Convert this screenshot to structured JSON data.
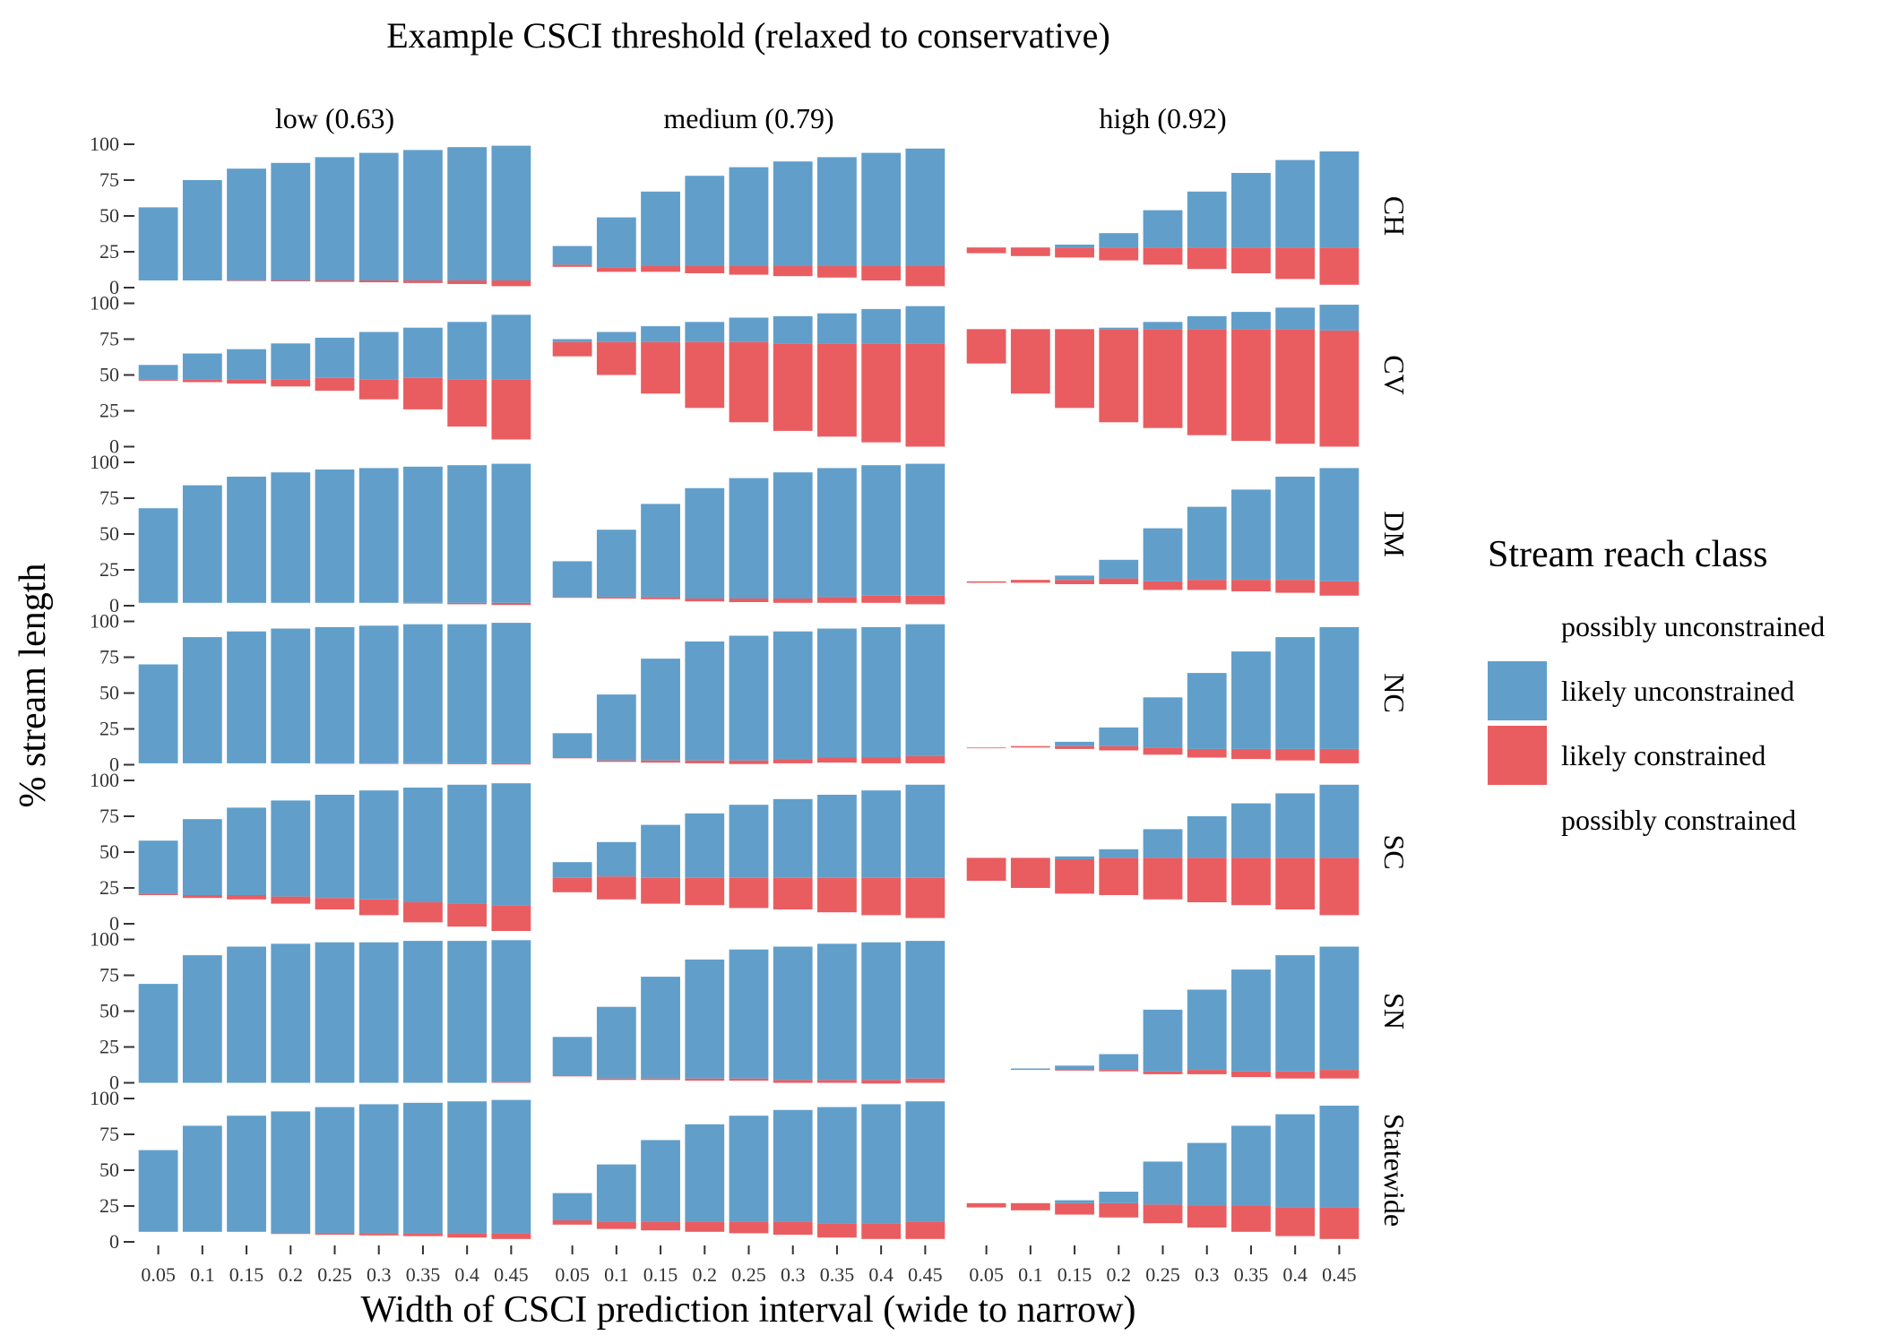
{
  "chart_data": {
    "type": "bar",
    "title": "Example CSCI threshold (relaxed to conservative)",
    "xlabel": "Width of CSCI prediction interval (wide to narrow)",
    "ylabel": "% stream length",
    "ylim": [
      0,
      100
    ],
    "yticks": [
      0,
      25,
      50,
      75,
      100
    ],
    "categories": [
      "0.05",
      "0.1",
      "0.15",
      "0.2",
      "0.25",
      "0.3",
      "0.35",
      "0.4",
      "0.45"
    ],
    "columns": [
      "low (0.63)",
      "medium (0.79)",
      "high (0.92)"
    ],
    "rows": [
      "CH",
      "CV",
      "DM",
      "NC",
      "SC",
      "SN",
      "Statewide"
    ],
    "legend": {
      "title": "Stream reach class",
      "placement": "right",
      "entries": [
        {
          "label": "possibly unconstrained",
          "color": "#ffffff"
        },
        {
          "label": "likely unconstrained",
          "color": "#619fca"
        },
        {
          "label": "likely constrained",
          "color": "#e95d61"
        },
        {
          "label": "possibly constrained",
          "color": "#ffffff"
        }
      ]
    },
    "colors": {
      "likely_unconstrained": "#619fca",
      "likely_constrained": "#e95d61",
      "possibly": "#ffffff"
    },
    "series_order_top_to_bottom": [
      "possibly unconstrained",
      "likely unconstrained",
      "likely constrained",
      "possibly constrained"
    ],
    "panels": [
      {
        "row": "CH",
        "column": "low (0.63)",
        "likely_unconstrained": [
          51,
          70,
          78,
          82,
          86,
          89,
          91,
          93,
          94
        ],
        "likely_constrained": [
          0,
          0,
          0.4,
          0.6,
          1,
          1.3,
          1.8,
          2.5,
          4
        ],
        "possibly_unconstrained": [
          44,
          25,
          17,
          13,
          9,
          6,
          4,
          2,
          1
        ]
      },
      {
        "row": "CH",
        "column": "medium (0.79)",
        "likely_unconstrained": [
          13,
          35,
          52,
          63,
          69,
          73,
          76,
          79,
          82
        ],
        "likely_constrained": [
          1.5,
          3,
          4,
          5,
          6,
          7,
          8,
          10,
          14
        ],
        "possibly_unconstrained": [
          71,
          51,
          33,
          22,
          16,
          12,
          9,
          6,
          3
        ]
      },
      {
        "row": "CH",
        "column": "high (0.92)",
        "likely_unconstrained": [
          0,
          0,
          2,
          10,
          26,
          39,
          52,
          61,
          67
        ],
        "likely_constrained": [
          4,
          6,
          7,
          9,
          12,
          15,
          18,
          22,
          26
        ],
        "possibly_unconstrained": [
          72,
          72,
          70,
          62,
          46,
          33,
          20,
          11,
          5
        ]
      },
      {
        "row": "CV",
        "column": "low (0.63)",
        "likely_unconstrained": [
          10,
          18,
          21,
          25,
          28,
          33,
          35,
          40,
          45
        ],
        "likely_constrained": [
          1,
          2,
          3,
          5,
          9,
          14,
          22,
          33,
          42
        ],
        "possibly_unconstrained": [
          43,
          35,
          32,
          28,
          24,
          20,
          17,
          13,
          8
        ]
      },
      {
        "row": "CV",
        "column": "medium (0.79)",
        "likely_unconstrained": [
          2,
          7,
          11,
          14,
          17,
          19,
          21,
          24,
          26
        ],
        "likely_constrained": [
          10,
          23,
          36,
          46,
          56,
          61,
          65,
          69,
          72
        ],
        "possibly_unconstrained": [
          25,
          20,
          16,
          13,
          10,
          9,
          7,
          4,
          2
        ]
      },
      {
        "row": "CV",
        "column": "high (0.92)",
        "likely_unconstrained": [
          0,
          0,
          0,
          1,
          5,
          9,
          12,
          15,
          18
        ],
        "likely_constrained": [
          24,
          45,
          55,
          65,
          69,
          74,
          78,
          80,
          81
        ],
        "possibly_unconstrained": [
          18,
          18,
          18,
          17,
          13,
          9,
          6,
          3,
          1
        ]
      },
      {
        "row": "DM",
        "column": "low (0.63)",
        "likely_unconstrained": [
          66,
          82,
          88,
          91,
          93,
          94,
          95,
          96,
          97
        ],
        "likely_constrained": [
          0,
          0,
          0,
          0,
          0,
          0,
          0.5,
          1,
          1.5
        ],
        "possibly_unconstrained": [
          32,
          16,
          10,
          7,
          5,
          4,
          3,
          2,
          1
        ]
      },
      {
        "row": "DM",
        "column": "medium (0.79)",
        "likely_unconstrained": [
          25,
          47,
          65,
          77,
          84,
          88,
          90,
          91,
          92
        ],
        "likely_constrained": [
          0.5,
          1,
          1.5,
          2,
          2.5,
          3,
          4,
          5,
          6
        ],
        "possibly_unconstrained": [
          69,
          47,
          29,
          18,
          11,
          7,
          4,
          2,
          1
        ]
      },
      {
        "row": "DM",
        "column": "high (0.92)",
        "likely_unconstrained": [
          0,
          0,
          3,
          13,
          37,
          51,
          63,
          72,
          79
        ],
        "likely_constrained": [
          1,
          2,
          3,
          4,
          6,
          7,
          8,
          9,
          10
        ],
        "possibly_unconstrained": [
          83,
          82,
          79,
          68,
          46,
          31,
          19,
          10,
          4
        ]
      },
      {
        "row": "NC",
        "column": "low (0.63)",
        "likely_unconstrained": [
          69,
          88,
          92,
          94,
          95,
          96,
          97,
          97,
          98
        ],
        "likely_constrained": [
          0,
          0,
          0,
          0,
          0.3,
          0.4,
          0.5,
          0.6,
          0.8
        ],
        "possibly_unconstrained": [
          30,
          11,
          7,
          5,
          4,
          3,
          2,
          2,
          1
        ]
      },
      {
        "row": "NC",
        "column": "medium (0.79)",
        "likely_unconstrained": [
          17,
          46,
          71,
          83,
          87,
          89,
          90,
          91,
          92
        ],
        "likely_constrained": [
          0.5,
          1,
          1.5,
          2,
          2.5,
          3,
          3.5,
          4,
          5
        ],
        "possibly_unconstrained": [
          78,
          51,
          26,
          14,
          10,
          7,
          5,
          4,
          2
        ]
      },
      {
        "row": "NC",
        "column": "high (0.92)",
        "likely_unconstrained": [
          0,
          0,
          3,
          13,
          35,
          53,
          68,
          78,
          85
        ],
        "likely_constrained": [
          0.5,
          1,
          2,
          3,
          5,
          6,
          7,
          8,
          10
        ],
        "possibly_unconstrained": [
          88,
          87,
          84,
          74,
          53,
          36,
          21,
          11,
          4
        ]
      },
      {
        "row": "SC",
        "column": "low (0.63)",
        "likely_unconstrained": [
          37,
          53,
          61,
          67,
          72,
          76,
          80,
          83,
          85
        ],
        "likely_constrained": [
          1,
          2,
          3,
          5,
          8,
          11,
          14,
          16,
          18
        ],
        "possibly_unconstrained": [
          42,
          27,
          19,
          14,
          10,
          7,
          5,
          3,
          2
        ]
      },
      {
        "row": "SC",
        "column": "medium (0.79)",
        "likely_unconstrained": [
          11,
          24,
          37,
          45,
          51,
          55,
          58,
          61,
          65
        ],
        "likely_constrained": [
          10,
          16,
          18,
          19,
          21,
          22,
          24,
          26,
          28
        ],
        "possibly_unconstrained": [
          57,
          43,
          31,
          23,
          17,
          13,
          10,
          7,
          3
        ]
      },
      {
        "row": "SC",
        "column": "high (0.92)",
        "likely_unconstrained": [
          0,
          0,
          2,
          6,
          20,
          29,
          38,
          45,
          51
        ],
        "likely_constrained": [
          16,
          21,
          24,
          26,
          29,
          31,
          33,
          36,
          40
        ],
        "possibly_unconstrained": [
          54,
          54,
          53,
          48,
          34,
          25,
          16,
          9,
          3
        ]
      },
      {
        "row": "SN",
        "column": "low (0.63)",
        "likely_unconstrained": [
          69,
          89,
          95,
          97,
          98,
          98,
          99,
          99,
          99
        ],
        "likely_constrained": [
          0,
          0,
          0,
          0,
          0,
          0,
          0,
          0,
          0.5
        ],
        "possibly_unconstrained": [
          31,
          11,
          5,
          3,
          2,
          2,
          1,
          1,
          0.5
        ]
      },
      {
        "row": "SN",
        "column": "medium (0.79)",
        "likely_unconstrained": [
          27,
          50,
          71,
          83,
          90,
          93,
          95,
          96,
          96
        ],
        "likely_constrained": [
          0.5,
          1,
          1,
          1.5,
          1.5,
          2,
          2,
          2.5,
          3
        ],
        "possibly_unconstrained": [
          68,
          47,
          26,
          14,
          7,
          5,
          3,
          2,
          1
        ]
      },
      {
        "row": "SN",
        "column": "high (0.92)",
        "likely_unconstrained": [
          0,
          1,
          3,
          11,
          43,
          56,
          71,
          81,
          86
        ],
        "likely_constrained": [
          0,
          0,
          0.5,
          1,
          2,
          3,
          4,
          5,
          6
        ],
        "possibly_unconstrained": [
          91,
          90,
          88,
          80,
          49,
          35,
          21,
          11,
          5
        ]
      },
      {
        "row": "Statewide",
        "column": "low (0.63)",
        "likely_unconstrained": [
          57,
          74,
          81,
          85,
          88,
          90,
          91,
          92,
          93
        ],
        "likely_constrained": [
          0,
          0,
          0,
          0.5,
          1,
          1.5,
          2,
          3,
          4
        ],
        "possibly_unconstrained": [
          36,
          19,
          12,
          9,
          6,
          4,
          3,
          2,
          1
        ]
      },
      {
        "row": "Statewide",
        "column": "medium (0.79)",
        "likely_unconstrained": [
          19,
          40,
          57,
          68,
          74,
          78,
          81,
          83,
          84
        ],
        "likely_constrained": [
          3,
          5,
          6,
          7,
          8,
          9,
          10,
          11,
          12
        ],
        "possibly_unconstrained": [
          66,
          46,
          29,
          18,
          12,
          8,
          6,
          4,
          2
        ]
      },
      {
        "row": "Statewide",
        "column": "high (0.92)",
        "likely_unconstrained": [
          0,
          0,
          2,
          8,
          30,
          44,
          56,
          65,
          71
        ],
        "likely_constrained": [
          3,
          5,
          8,
          10,
          13,
          15,
          18,
          20,
          22
        ],
        "possibly_unconstrained": [
          73,
          73,
          71,
          65,
          44,
          31,
          19,
          11,
          5
        ]
      }
    ]
  }
}
